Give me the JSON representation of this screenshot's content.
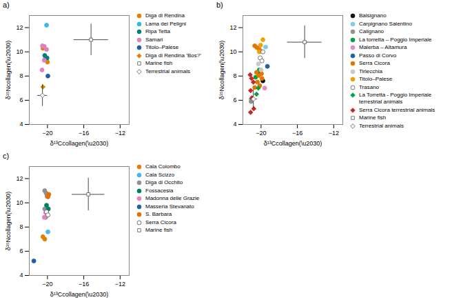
{
  "chart_data": [
    {
      "type": "scatter",
      "title": "a)",
      "x_label": "δ¹³Ccollagen(\\u2030)",
      "y_label": "δ¹⁵Ncollagen(\\u2030)",
      "xlim": [
        -22,
        -11
      ],
      "ylim": [
        4,
        13
      ],
      "xticks": [
        -20,
        -16,
        -12
      ],
      "yticks": [
        4,
        6,
        8,
        10,
        12
      ],
      "grid": false,
      "legend": "right",
      "series": [
        {
          "name": "Diga di Rendina",
          "color": "#E08000",
          "marker": "circle",
          "x": [
            -20.5,
            -20.3,
            -20.1,
            -20.0
          ],
          "y": [
            10.3,
            9.35,
            9.4,
            9.15
          ]
        },
        {
          "name": "Lama dei Peligni",
          "color": "#36B8E0",
          "marker": "circle",
          "x": [
            -20.1
          ],
          "y": [
            12.2
          ]
        },
        {
          "name": "Ripa Tetta",
          "color": "#008080",
          "marker": "circle",
          "x": [
            -20.3,
            -20.05
          ],
          "y": [
            9.7,
            9.5
          ]
        },
        {
          "name": "Samari",
          "color": "#E080C0",
          "marker": "circle",
          "x": [
            -20.55,
            -20.35,
            -20.1,
            -20.35,
            -20.6
          ],
          "y": [
            10.5,
            10.45,
            10.2,
            9.3,
            8.5
          ]
        },
        {
          "name": "Titolo–Palese",
          "color": "#1E60A8",
          "marker": "circle",
          "x": [
            -19.95
          ],
          "y": [
            8.0
          ]
        },
        {
          "name": "Diga di Rendina ’Bos?’",
          "color": "#E08000",
          "marker": "diamond",
          "x": [
            -20.5
          ],
          "y": [
            7.1
          ]
        },
        {
          "name": "Marine fish",
          "color": "white",
          "marker": "square",
          "x": [
            -15.2
          ],
          "y": [
            11.0
          ],
          "xerr": [
            1.9
          ],
          "yerr": [
            1.3
          ]
        },
        {
          "name": "Terrestrial animals",
          "color": "white",
          "marker": "diamond",
          "x": [
            -20.55
          ],
          "y": [
            6.4
          ],
          "xerr": [
            0.55
          ],
          "yerr": [
            0.9
          ]
        }
      ]
    },
    {
      "type": "scatter",
      "title": "b)",
      "x_label": "δ¹³Ccollagen(\\u2030)",
      "y_label": "δ¹⁵Ncollagen(\\u2030)",
      "xlim": [
        -22,
        -11
      ],
      "ylim": [
        4,
        13
      ],
      "xticks": [
        -20,
        -16,
        -12
      ],
      "yticks": [
        4,
        6,
        8,
        10,
        12
      ],
      "grid": false,
      "legend": "right",
      "series": [
        {
          "name": "Balsignano",
          "color": "#111111",
          "marker": "circle",
          "x": [
            -20.1,
            -19.8
          ],
          "y": [
            8.2,
            7.6
          ]
        },
        {
          "name": "Carpignano Salentino",
          "color": "#80C8E8",
          "marker": "circle",
          "x": [
            -19.5
          ],
          "y": [
            10.4
          ]
        },
        {
          "name": "Calignano",
          "color": "#909090",
          "marker": "circle",
          "x": [
            -21.1
          ],
          "y": [
            5.9
          ]
        },
        {
          "name": "La torretta – Poggio Imperiale",
          "color": "#00A040",
          "marker": "circle",
          "x": [
            -20.6,
            -20.2
          ],
          "y": [
            7.9,
            8.5
          ]
        },
        {
          "name": "Malerba – Altamura",
          "color": "#E888C0",
          "marker": "circle",
          "x": [
            -19.6
          ],
          "y": [
            7.0
          ]
        },
        {
          "name": "Passo di Corvo",
          "color": "#1E60A8",
          "marker": "circle",
          "x": [
            -19.3
          ],
          "y": [
            8.8
          ]
        },
        {
          "name": "Serra Cicora",
          "color": "#E07800",
          "marker": "circle",
          "x": [
            -20.7,
            -20.45,
            -20.2,
            -20.05,
            -20.5,
            -20.25,
            -19.95,
            -20.4,
            -20.15,
            -20.7,
            -19.9
          ],
          "y": [
            10.5,
            10.35,
            10.2,
            10.05,
            8.3,
            8.05,
            8.2,
            7.5,
            7.2,
            7.05,
            7.8
          ]
        },
        {
          "name": "Tirlecchia",
          "color": "#C8C8C8",
          "marker": "circle",
          "x": [
            -20.3,
            -20.0
          ],
          "y": [
            9.0,
            8.5
          ]
        },
        {
          "name": "Titolo–Palese",
          "color": "#F0A000",
          "marker": "circle",
          "x": [
            -19.8,
            -20.05,
            -20.2
          ],
          "y": [
            11.0,
            10.55,
            10.0
          ]
        },
        {
          "name": "Trasano",
          "color": "white",
          "marker": "circle",
          "x": [
            -19.8,
            -20.1,
            -19.9
          ],
          "y": [
            10.0,
            9.5,
            9.25
          ]
        },
        {
          "name": "La Torretta - Poggio Imperiale\nterrestrial animals",
          "color": "#00A040",
          "marker": "diamond",
          "x": [
            -20.3,
            -20.5
          ],
          "y": [
            7.0,
            6.5
          ]
        },
        {
          "name": "Serra Cicora terrestrial animals",
          "color": "#CC2222",
          "marker": "diamond",
          "x": [
            -21.2,
            -21.05,
            -20.85,
            -21.15,
            -21.0,
            -20.8,
            -21.15
          ],
          "y": [
            8.1,
            7.8,
            7.5,
            6.8,
            6.2,
            5.3,
            5.0
          ]
        },
        {
          "name": "Marine fish",
          "color": "white",
          "marker": "square",
          "x": [
            -15.2
          ],
          "y": [
            10.8
          ],
          "xerr": [
            1.9
          ],
          "yerr": [
            1.35
          ]
        },
        {
          "name": "Terrestrial animals",
          "color": "white",
          "marker": "diamond",
          "x": [
            -20.85
          ],
          "y": [
            6.1
          ],
          "xerr": [
            0.45
          ],
          "yerr": [
            0.75
          ]
        }
      ]
    },
    {
      "type": "scatter",
      "title": "c)",
      "x_label": "δ¹³Ccollagen(\\u2030)",
      "y_label": "δ¹⁵Ncollagen(\\u2030)",
      "xlim": [
        -22,
        -11
      ],
      "ylim": [
        4,
        13
      ],
      "xticks": [
        -20,
        -16,
        -12
      ],
      "yticks": [
        4,
        6,
        8,
        10,
        12
      ],
      "grid": false,
      "legend": "right",
      "series": [
        {
          "name": "Cala Colombo",
          "color": "#E08000",
          "marker": "circle",
          "x": [
            -20.5,
            -20.3
          ],
          "y": [
            7.2,
            7.0
          ]
        },
        {
          "name": "Cala Scizzo",
          "color": "#40B8F0",
          "marker": "circle",
          "x": [
            -19.95
          ],
          "y": [
            7.6
          ]
        },
        {
          "name": "Diga di Occhito",
          "color": "#909090",
          "marker": "circle",
          "x": [
            -20.3,
            -20.15,
            -20.05,
            -19.95,
            -20.3,
            -20.1,
            -20.0,
            -20.2
          ],
          "y": [
            11.0,
            10.8,
            10.55,
            10.55,
            9.5,
            9.3,
            9.0,
            8.8
          ]
        },
        {
          "name": "Fossacesia",
          "color": "#008060",
          "marker": "circle",
          "x": [
            -20.1,
            -19.9
          ],
          "y": [
            9.8,
            9.5
          ]
        },
        {
          "name": "Madonna delle Grazie",
          "color": "#E880C0",
          "marker": "circle",
          "x": [
            -20.2,
            -20.0,
            -20.35
          ],
          "y": [
            9.2,
            9.0,
            8.8
          ]
        },
        {
          "name": "Masseria Stevanato",
          "color": "#1E60A8",
          "marker": "circle",
          "x": [
            -21.5
          ],
          "y": [
            5.2
          ]
        },
        {
          "name": "S. Barbara",
          "color": "#E07000",
          "marker": "circle",
          "x": [
            -19.85,
            -19.95
          ],
          "y": [
            10.7,
            10.5
          ]
        },
        {
          "name": "Serra Cicora",
          "color": "white",
          "marker": "circle",
          "x": [
            -20.1,
            -19.95
          ],
          "y": [
            9.25,
            9.0
          ]
        },
        {
          "name": "Marine fish",
          "color": "white",
          "marker": "square",
          "x": [
            -15.5
          ],
          "y": [
            10.7
          ],
          "xerr": [
            1.8
          ],
          "yerr": [
            1.35
          ]
        }
      ]
    }
  ]
}
